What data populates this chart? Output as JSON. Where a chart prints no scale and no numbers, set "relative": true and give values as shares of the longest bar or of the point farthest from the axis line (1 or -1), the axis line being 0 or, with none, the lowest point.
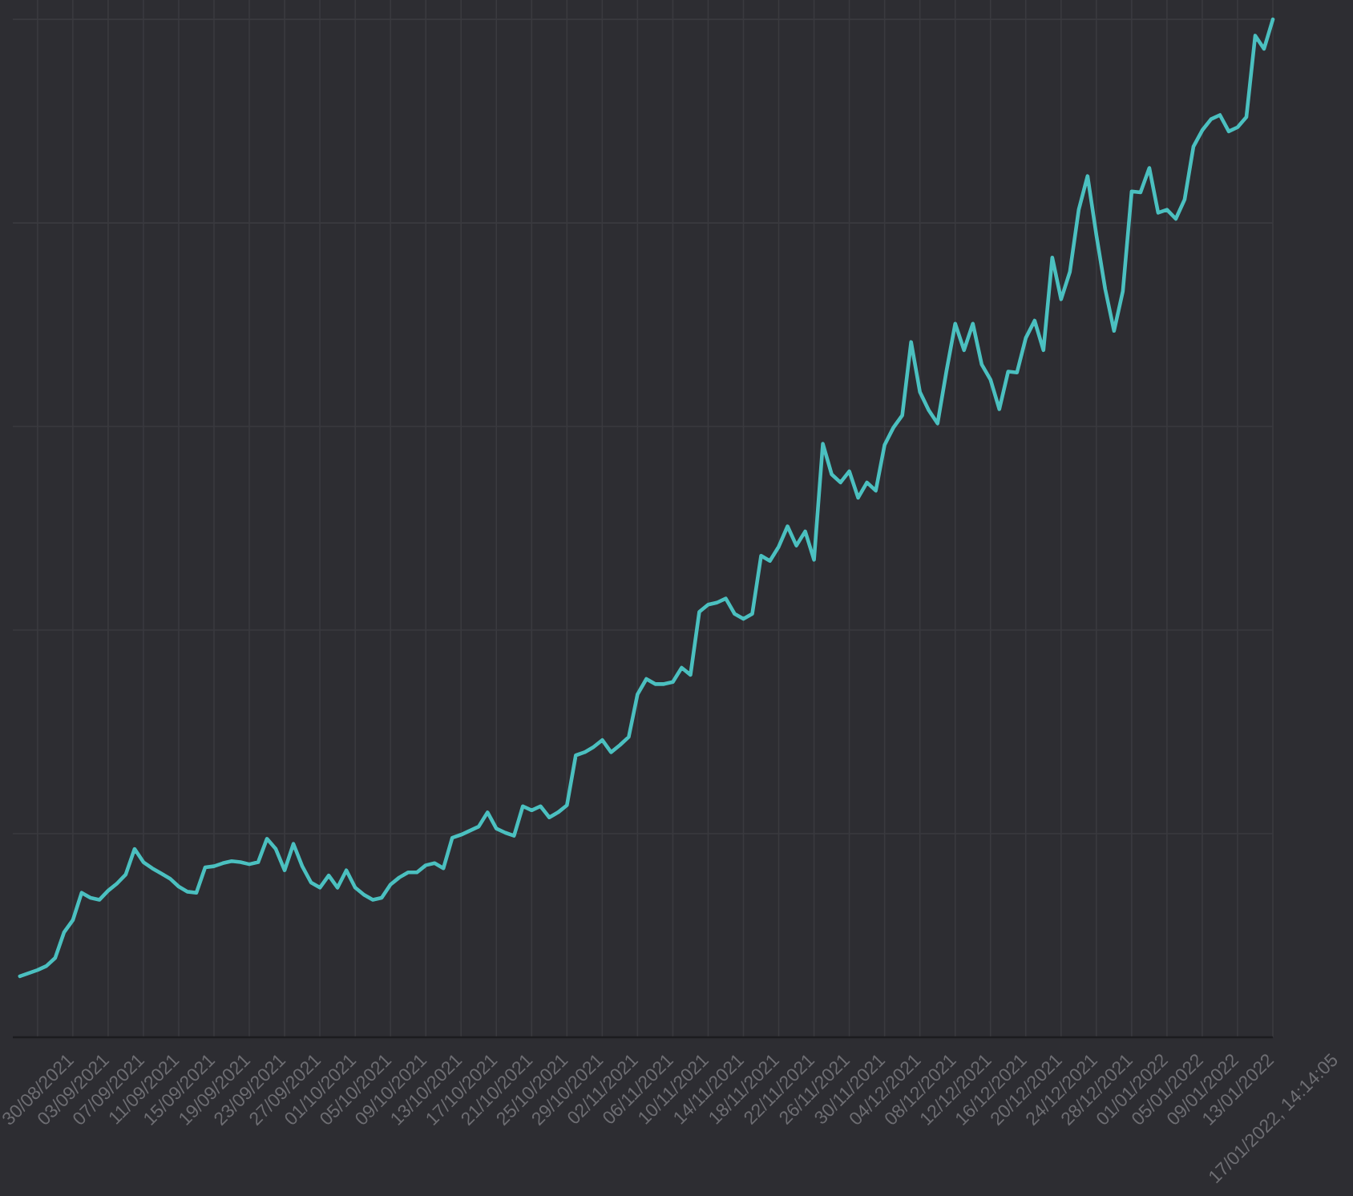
{
  "chart_data": {
    "type": "line",
    "relative": true,
    "grid": true,
    "color": "#4bc0c0",
    "categories": [
      null,
      null,
      "30/08/2021",
      null,
      null,
      null,
      "03/09/2021",
      null,
      null,
      null,
      "07/09/2021",
      null,
      null,
      null,
      "11/09/2021",
      null,
      null,
      null,
      "15/09/2021",
      null,
      null,
      null,
      "19/09/2021",
      null,
      null,
      null,
      "23/09/2021",
      null,
      null,
      null,
      "27/09/2021",
      null,
      null,
      null,
      "01/10/2021",
      null,
      null,
      null,
      "05/10/2021",
      null,
      null,
      null,
      "09/10/2021",
      null,
      null,
      null,
      "13/10/2021",
      null,
      null,
      null,
      "17/10/2021",
      null,
      null,
      null,
      "21/10/2021",
      null,
      null,
      null,
      "25/10/2021",
      null,
      null,
      null,
      "29/10/2021",
      null,
      null,
      null,
      "02/11/2021",
      null,
      null,
      null,
      "06/11/2021",
      null,
      null,
      null,
      "10/11/2021",
      null,
      null,
      null,
      "14/11/2021",
      null,
      null,
      null,
      "18/11/2021",
      null,
      null,
      null,
      "22/11/2021",
      null,
      null,
      null,
      "26/11/2021",
      null,
      null,
      null,
      "30/11/2021",
      null,
      null,
      null,
      "04/12/2021",
      null,
      null,
      null,
      "08/12/2021",
      null,
      null,
      null,
      "12/12/2021",
      null,
      null,
      null,
      "16/12/2021",
      null,
      null,
      null,
      "20/12/2021",
      null,
      null,
      null,
      "24/12/2021",
      null,
      null,
      null,
      "28/12/2021",
      null,
      null,
      null,
      "01/01/2022",
      null,
      null,
      null,
      "05/01/2022",
      null,
      null,
      null,
      "09/01/2022",
      null,
      null,
      null,
      "13/01/2022",
      null,
      null,
      null,
      "17/01/2022, 14:14:05"
    ],
    "values": [
      0.06,
      0.063,
      0.066,
      0.07,
      0.078,
      0.103,
      0.115,
      0.142,
      0.137,
      0.135,
      0.144,
      0.151,
      0.16,
      0.185,
      0.172,
      0.166,
      0.161,
      0.156,
      0.148,
      0.143,
      0.142,
      0.167,
      0.168,
      0.171,
      0.173,
      0.172,
      0.17,
      0.172,
      0.195,
      0.185,
      0.164,
      0.19,
      0.168,
      0.152,
      0.147,
      0.159,
      0.147,
      0.164,
      0.147,
      0.14,
      0.135,
      0.137,
      0.15,
      0.157,
      0.162,
      0.162,
      0.169,
      0.171,
      0.166,
      0.196,
      0.199,
      0.203,
      0.207,
      0.221,
      0.205,
      0.201,
      0.198,
      0.227,
      0.223,
      0.227,
      0.216,
      0.221,
      0.228,
      0.277,
      0.28,
      0.285,
      0.292,
      0.28,
      0.287,
      0.295,
      0.337,
      0.352,
      0.347,
      0.347,
      0.349,
      0.363,
      0.356,
      0.418,
      0.425,
      0.427,
      0.431,
      0.416,
      0.411,
      0.416,
      0.473,
      0.468,
      0.482,
      0.502,
      0.483,
      0.497,
      0.469,
      0.583,
      0.553,
      0.545,
      0.556,
      0.53,
      0.545,
      0.537,
      0.582,
      0.599,
      0.611,
      0.683,
      0.634,
      0.616,
      0.603,
      0.654,
      0.701,
      0.675,
      0.701,
      0.661,
      0.646,
      0.617,
      0.654,
      0.653,
      0.687,
      0.704,
      0.675,
      0.766,
      0.725,
      0.752,
      0.813,
      0.846,
      0.788,
      0.735,
      0.694,
      0.733,
      0.831,
      0.83,
      0.854,
      0.81,
      0.813,
      0.804,
      0.823,
      0.875,
      0.891,
      0.902,
      0.906,
      0.89,
      0.894,
      0.904,
      0.984,
      0.971,
      1.0
    ]
  }
}
